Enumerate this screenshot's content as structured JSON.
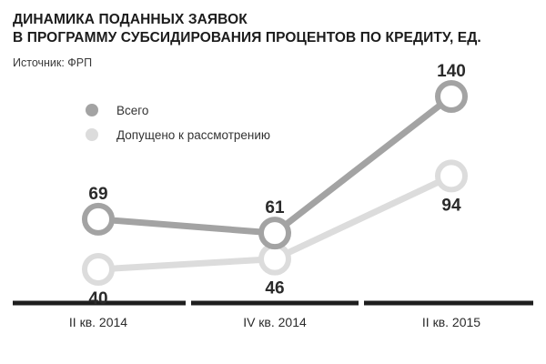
{
  "title_line1": "ДИНАМИКА ПОДАННЫХ ЗАЯВОК",
  "title_line2": "В ПРОГРАММУ СУБСИДИРОВАНИЯ ПРОЦЕНТОВ ПО КРЕДИТУ, ЕД.",
  "source": "Источник: ФРП",
  "colors": {
    "series_total": "#a3a3a3",
    "series_accepted": "#dcdcdc",
    "axis": "#1e1e1e",
    "label": "#2a2a2a"
  },
  "chart_data": {
    "type": "line",
    "title": "ДИНАМИКА ПОДАННЫХ ЗАЯВОК В ПРОГРАММУ СУБСИДИРОВАНИЯ ПРОЦЕНТОВ ПО КРЕДИТУ, ЕД.",
    "categories": [
      "II кв. 2014",
      "IV кв. 2014",
      "II кв. 2015"
    ],
    "series": [
      {
        "name": "Всего",
        "values": [
          69,
          61,
          140
        ]
      },
      {
        "name": "Допущено к рассмотрению",
        "values": [
          40,
          46,
          94
        ]
      }
    ],
    "ylim": [
      0,
      160
    ],
    "xlabel": "",
    "ylabel": "",
    "grid": false,
    "legend_position": "top-left"
  }
}
